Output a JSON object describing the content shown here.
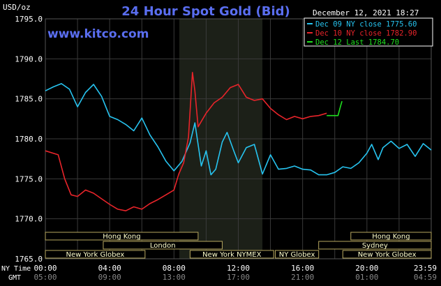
{
  "header": {
    "unit": "USD/oz",
    "title": "24 Hour Spot Gold (Bid)",
    "timestamp": "December 12, 2021 18:27",
    "site": "www.kitco.com"
  },
  "legend": [
    {
      "label": "Dec 09 NY close 1775.60",
      "color": "#27c4f0"
    },
    {
      "label": "Dec 10 NY close 1782.90",
      "color": "#e8242a"
    },
    {
      "label": "Dec 12 Last 1784.70",
      "color": "#1fe01f"
    }
  ],
  "axis": {
    "y_ticks": [
      "1795.0",
      "1790.0",
      "1785.0",
      "1780.0",
      "1775.0",
      "1770.0",
      "1765.0"
    ],
    "nytime_label": "NY Time",
    "gmt_label": "GMT",
    "nytime_ticks": [
      "00:00",
      "04:00",
      "08:00",
      "12:00",
      "16:00",
      "20:00",
      "23:59"
    ],
    "gmt_ticks": [
      "05:00",
      "09:00",
      "13:00",
      "17:00",
      "21:00",
      "01:00",
      "04:59"
    ]
  },
  "sessions": [
    {
      "label": "Hong Kong",
      "row": 1
    },
    {
      "label": "London",
      "row": 2
    },
    {
      "label": "New York Globex",
      "row": 3
    },
    {
      "label": "New York NYMEX",
      "row": 3
    },
    {
      "label": "NY Globex",
      "row": 3
    },
    {
      "label": "Hong Kong",
      "row": 1
    },
    {
      "label": "Sydney",
      "row": 2
    },
    {
      "label": "New York Globex",
      "row": 3
    }
  ],
  "colors": {
    "background": "#000000",
    "plot_background": "#000000",
    "nymex_shade": "#1c2018",
    "grid": "#3a3a3a",
    "title": "#5a6ef0",
    "site": "#5a6ef0",
    "session_box": "#ffffcc",
    "session_border": "#b8a860"
  },
  "chart_data": {
    "type": "line",
    "title": "24 Hour Spot Gold (Bid)",
    "ylabel": "USD/oz",
    "ylim": [
      1765,
      1795
    ],
    "xlim_hours": [
      0,
      24
    ],
    "grid": true,
    "legend_placement": "top-right",
    "series": [
      {
        "name": "Dec 09 NY close 1775.60",
        "color": "#27c4f0",
        "points": [
          [
            0,
            1786.0
          ],
          [
            0.5,
            1786.5
          ],
          [
            1.0,
            1786.9
          ],
          [
            1.5,
            1786.2
          ],
          [
            2.0,
            1784.0
          ],
          [
            2.5,
            1785.8
          ],
          [
            3.0,
            1786.8
          ],
          [
            3.5,
            1785.3
          ],
          [
            4.0,
            1782.8
          ],
          [
            4.5,
            1782.4
          ],
          [
            5.0,
            1781.8
          ],
          [
            5.5,
            1781.0
          ],
          [
            6.0,
            1782.6
          ],
          [
            6.5,
            1780.5
          ],
          [
            7.0,
            1779.0
          ],
          [
            7.5,
            1777.2
          ],
          [
            8.0,
            1776.0
          ],
          [
            8.5,
            1777.2
          ],
          [
            9.0,
            1779.5
          ],
          [
            9.3,
            1782.0
          ],
          [
            9.7,
            1776.6
          ],
          [
            10.0,
            1778.5
          ],
          [
            10.3,
            1775.5
          ],
          [
            10.6,
            1776.2
          ],
          [
            11.0,
            1779.6
          ],
          [
            11.3,
            1780.8
          ],
          [
            11.7,
            1778.6
          ],
          [
            12.0,
            1777.0
          ],
          [
            12.5,
            1778.9
          ],
          [
            13.0,
            1779.3
          ],
          [
            13.5,
            1775.6
          ],
          [
            14.0,
            1778.0
          ],
          [
            14.5,
            1776.2
          ],
          [
            15.0,
            1776.3
          ],
          [
            15.5,
            1776.6
          ],
          [
            16.0,
            1776.2
          ],
          [
            16.5,
            1776.1
          ],
          [
            17.0,
            1775.5
          ],
          [
            17.5,
            1775.5
          ],
          [
            18.0,
            1775.8
          ],
          [
            18.5,
            1776.5
          ],
          [
            19.0,
            1776.3
          ],
          [
            19.5,
            1777.0
          ],
          [
            20.0,
            1778.2
          ],
          [
            20.3,
            1779.3
          ],
          [
            20.7,
            1777.4
          ],
          [
            21.0,
            1778.9
          ],
          [
            21.5,
            1779.7
          ],
          [
            22.0,
            1778.8
          ],
          [
            22.5,
            1779.3
          ],
          [
            23.0,
            1777.8
          ],
          [
            23.5,
            1779.4
          ],
          [
            24.0,
            1778.6
          ]
        ]
      },
      {
        "name": "Dec 10 NY close 1782.90",
        "color": "#e8242a",
        "points": [
          [
            0,
            1778.5
          ],
          [
            0.8,
            1778.0
          ],
          [
            1.2,
            1775.0
          ],
          [
            1.6,
            1773.0
          ],
          [
            2.0,
            1772.8
          ],
          [
            2.5,
            1773.6
          ],
          [
            3.0,
            1773.2
          ],
          [
            3.5,
            1772.5
          ],
          [
            4.0,
            1771.8
          ],
          [
            4.5,
            1771.2
          ],
          [
            5.0,
            1771.0
          ],
          [
            5.5,
            1771.5
          ],
          [
            6.0,
            1771.2
          ],
          [
            6.5,
            1771.9
          ],
          [
            7.0,
            1772.4
          ],
          [
            7.5,
            1773.0
          ],
          [
            8.0,
            1773.6
          ],
          [
            8.3,
            1775.6
          ],
          [
            8.6,
            1777.0
          ],
          [
            8.9,
            1780.2
          ],
          [
            9.15,
            1788.3
          ],
          [
            9.3,
            1786.0
          ],
          [
            9.5,
            1781.5
          ],
          [
            10.0,
            1783.2
          ],
          [
            10.5,
            1784.5
          ],
          [
            11.0,
            1785.2
          ],
          [
            11.5,
            1786.4
          ],
          [
            12.0,
            1786.8
          ],
          [
            12.5,
            1785.2
          ],
          [
            13.0,
            1784.8
          ],
          [
            13.5,
            1785.0
          ],
          [
            14.0,
            1783.8
          ],
          [
            14.5,
            1783.0
          ],
          [
            15.0,
            1782.4
          ],
          [
            15.5,
            1782.8
          ],
          [
            16.0,
            1782.5
          ],
          [
            16.5,
            1782.8
          ],
          [
            17.0,
            1782.9
          ],
          [
            17.5,
            1783.2
          ]
        ]
      },
      {
        "name": "Dec 12 Last 1784.70",
        "color": "#1fe01f",
        "points": [
          [
            17.5,
            1782.9
          ],
          [
            18.0,
            1782.9
          ],
          [
            18.2,
            1782.9
          ],
          [
            18.35,
            1784.0
          ],
          [
            18.45,
            1784.7
          ]
        ]
      }
    ]
  }
}
